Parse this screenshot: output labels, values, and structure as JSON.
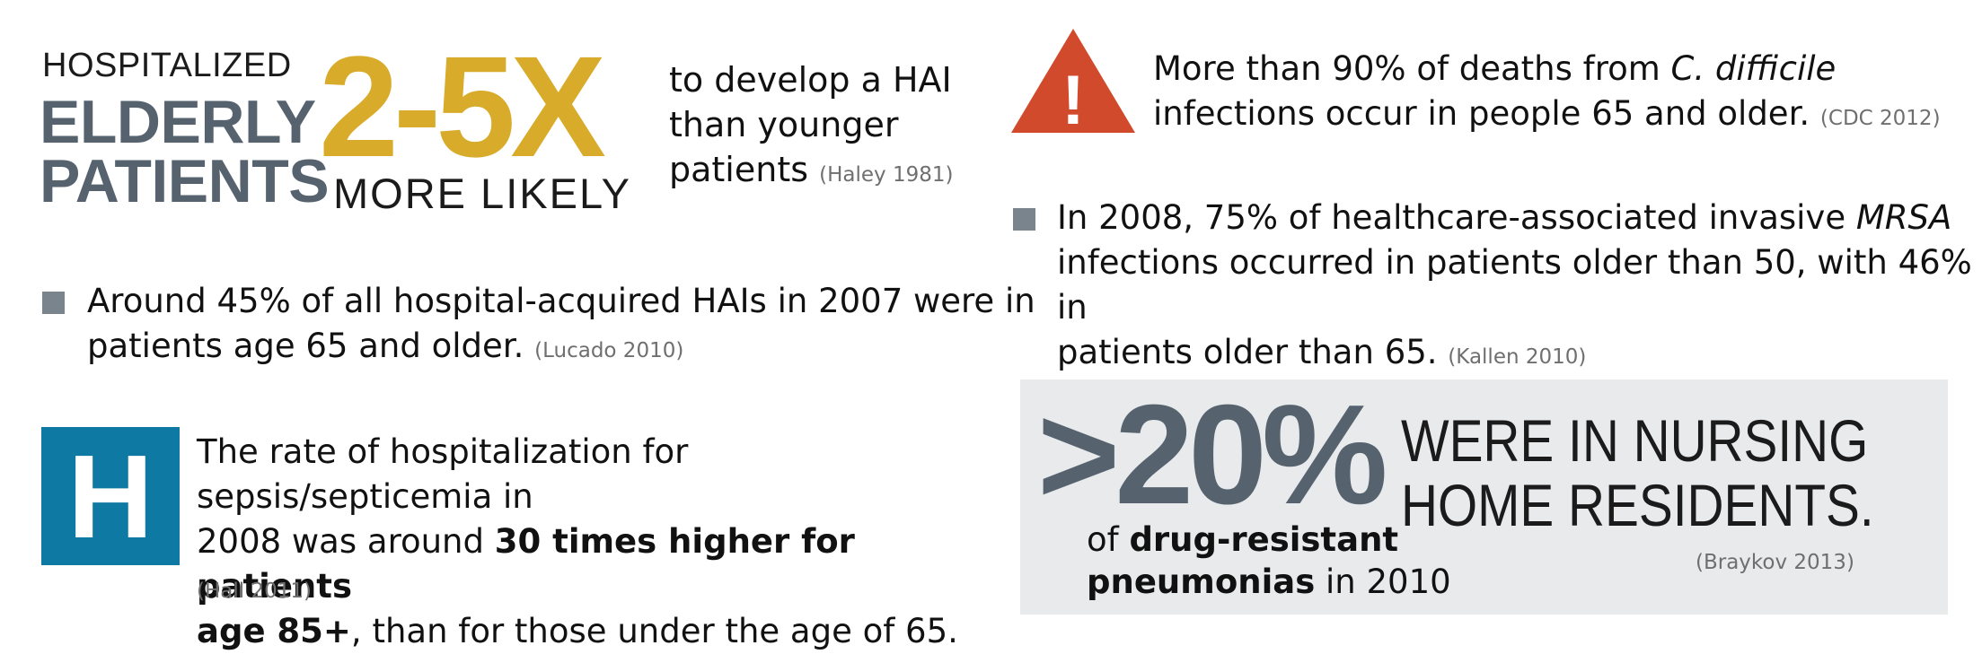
{
  "headline": {
    "hospitalized": "HOSPITALIZED",
    "elderly": "ELDERLY",
    "patients": "PATIENTS",
    "multiplier": "2-5X",
    "more_likely": "MORE LIKELY",
    "line1": "to develop a HAI",
    "line2": "than younger",
    "line3": "patients",
    "citation": "(Haley 1981)"
  },
  "bullet_hai": {
    "line1": "Around 45% of all hospital-acquired HAIs in 2007 were in",
    "line2": "patients age 65 and older.",
    "citation": "(Lucado 2010)"
  },
  "sepsis": {
    "icon_letter": "H",
    "line1": "The rate of hospitalization for sepsis/septicemia in",
    "line2_pre": "2008 was around ",
    "line2_bold": "30 times higher for patients",
    "line3_bold": "age 85+",
    "line3_post": ", than for those under the age of 65.",
    "citation": "(Hall 2011)"
  },
  "cdiff": {
    "warning_mark": "!",
    "line1_pre": "More than 90% of deaths from ",
    "line1_italic": "C. difficile",
    "line2": "infections occur in people 65 and older.",
    "citation": "(CDC 2012)"
  },
  "mrsa": {
    "line1_pre": "In 2008, 75% of healthcare-associated invasive ",
    "line1_italic": "MRSA",
    "line2": "infections occurred in patients older than 50, with 46% in",
    "line3": "patients older than 65.",
    "citation": "(Kallen 2010)"
  },
  "nursing": {
    "percent": ">20%",
    "headline_line1": "WERE IN NURSING",
    "headline_line2": "HOME RESIDENTS.",
    "sub_of": "of ",
    "sub_bold1": "drug-resistant",
    "sub_bold2": "pneumonias",
    "sub_post": " in 2010",
    "citation": "(Braykov 2013)"
  },
  "colors": {
    "slate": "#56636f",
    "gold": "#d8ab2a",
    "hospital_blue": "#0e7aa3",
    "warning_red": "#d24a2c",
    "bullet_grey": "#7a848c",
    "panel_grey": "#e8eaec"
  }
}
